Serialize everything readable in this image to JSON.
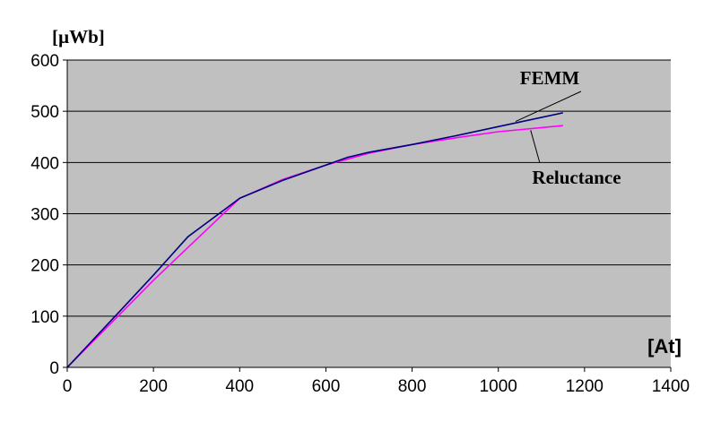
{
  "chart_data": {
    "type": "line",
    "ylabel": "[µWb]",
    "xlabel": "[At]",
    "xlim": [
      0,
      1400
    ],
    "ylim": [
      0,
      600
    ],
    "x_ticks": [
      0,
      200,
      400,
      600,
      800,
      1000,
      1200,
      1400
    ],
    "y_ticks": [
      0,
      100,
      200,
      300,
      400,
      500,
      600
    ],
    "x_tick_labels": [
      "0",
      "200",
      "400",
      "600",
      "800",
      "1000",
      "1200",
      "1400"
    ],
    "y_tick_labels": [
      "0",
      "100",
      "200",
      "300",
      "400",
      "500",
      "600"
    ],
    "grid": "horizontal",
    "plot_background": "#c0c0c0",
    "series": [
      {
        "name": "FEMM",
        "color": "#000080",
        "points": [
          [
            0,
            0
          ],
          [
            100,
            90
          ],
          [
            200,
            180
          ],
          [
            280,
            255
          ],
          [
            400,
            330
          ],
          [
            500,
            365
          ],
          [
            600,
            395
          ],
          [
            650,
            410
          ],
          [
            700,
            420
          ],
          [
            800,
            435
          ],
          [
            900,
            452
          ],
          [
            1000,
            470
          ],
          [
            1150,
            497
          ]
        ]
      },
      {
        "name": "Reluctance",
        "color": "#ff00ff",
        "points": [
          [
            0,
            0
          ],
          [
            100,
            85
          ],
          [
            200,
            170
          ],
          [
            300,
            250
          ],
          [
            400,
            330
          ],
          [
            500,
            367
          ],
          [
            600,
            395
          ],
          [
            700,
            418
          ],
          [
            800,
            435
          ],
          [
            900,
            448
          ],
          [
            1000,
            460
          ],
          [
            1150,
            472
          ]
        ]
      }
    ],
    "annotations": [
      {
        "text": "FEMM",
        "target_x": 1040,
        "target_y": 480
      },
      {
        "text": "Reluctance",
        "target_x": 1075,
        "target_y": 463
      }
    ]
  }
}
